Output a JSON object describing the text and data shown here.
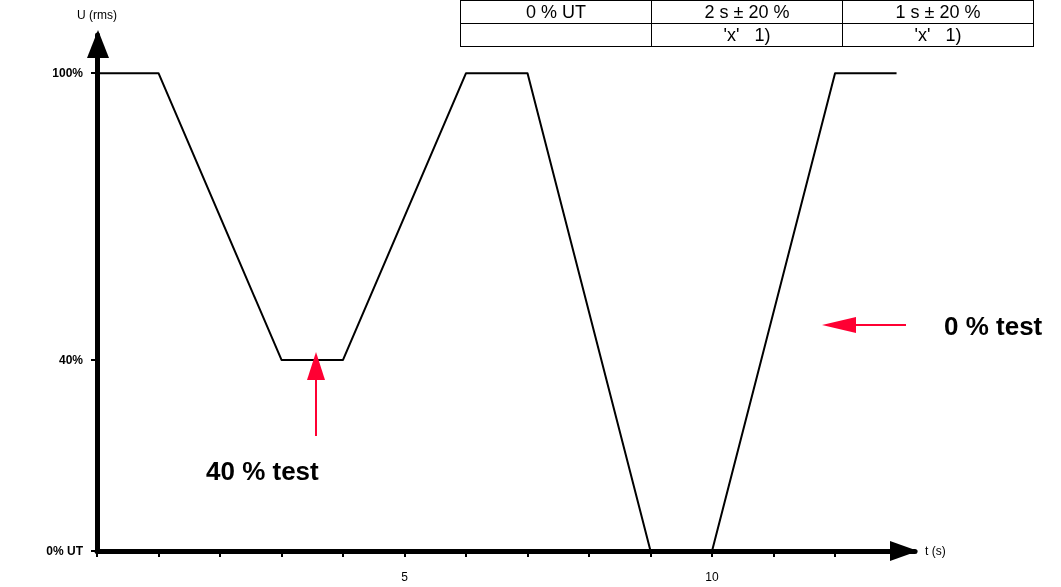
{
  "chart_data": {
    "type": "line",
    "xlabel": "t (s)",
    "ylabel": "U (rms)",
    "x": [
      0,
      1,
      3,
      4,
      6,
      7,
      9,
      10,
      12,
      13
    ],
    "series": [
      {
        "color": "#000000",
        "values": [
          100,
          100,
          40,
          40,
          100,
          100,
          0,
          0,
          100,
          100
        ]
      }
    ],
    "xlim": [
      0,
      13.3
    ],
    "xticks": [
      {
        "value": 0,
        "label": null
      },
      {
        "value": 1,
        "label": null
      },
      {
        "value": 2,
        "label": null
      },
      {
        "value": 3,
        "label": null
      },
      {
        "value": 4,
        "label": null
      },
      5,
      {
        "value": 6,
        "label": null
      },
      {
        "value": 7,
        "label": null
      },
      {
        "value": 8,
        "label": null
      },
      {
        "value": 9,
        "label": null
      },
      10,
      {
        "value": 11,
        "label": null
      },
      {
        "value": 12,
        "label": null
      }
    ],
    "ylim": [
      0,
      108
    ],
    "yticks": [
      {
        "value": 0,
        "label": "0% UT"
      },
      {
        "value": 40,
        "label": "40%"
      },
      {
        "value": 100,
        "label": "100%"
      }
    ],
    "marker": "none",
    "line_style": "solid",
    "grid": false,
    "annotations": [
      "40 % test",
      "0 % test",
      "0 % UT",
      "2 s ± 20 %",
      "1 s ± 20 %",
      "'x'   1)",
      "'x'   1)"
    ]
  }
}
